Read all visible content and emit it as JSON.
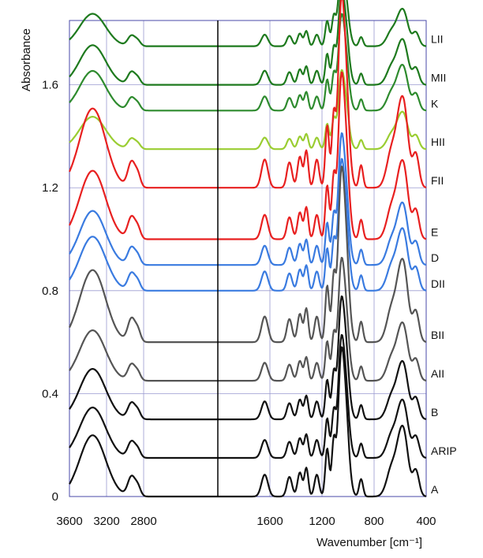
{
  "chart_data": {
    "type": "line",
    "title": "",
    "ylabel": "Absorbance",
    "xlabel": "Wavenumber [cm⁻¹]",
    "ylim": [
      0,
      1.85
    ],
    "y_ticks": [
      {
        "value": 0,
        "label": "0"
      },
      {
        "value": 0.4,
        "label": "0.4"
      },
      {
        "value": 0.8,
        "label": "0.8"
      },
      {
        "value": 1.2,
        "label": "1.2"
      },
      {
        "value": 1.6,
        "label": "1.6"
      }
    ],
    "x_axis_break_at": 2000,
    "x_segments": [
      {
        "range": [
          3600,
          2000
        ],
        "ticks": [
          {
            "value": 3600,
            "label": "3600"
          },
          {
            "value": 3200,
            "label": "3200"
          },
          {
            "value": 2800,
            "label": "2800"
          }
        ]
      },
      {
        "range": [
          2000,
          400
        ],
        "ticks": [
          {
            "value": 1600,
            "label": "1600"
          },
          {
            "value": 1200,
            "label": "1200"
          },
          {
            "value": 800,
            "label": "800"
          },
          {
            "value": 400,
            "label": "400"
          }
        ]
      }
    ],
    "series": [
      {
        "name": "LII",
        "baseline": 1.75,
        "scale": 0.45,
        "color": "#1e7a1e"
      },
      {
        "name": "MII",
        "baseline": 1.6,
        "scale": 0.55,
        "color": "#1e7a1e"
      },
      {
        "name": "K",
        "baseline": 1.5,
        "scale": 0.55,
        "color": "#2e8b2e"
      },
      {
        "name": "HII",
        "baseline": 1.35,
        "scale": 0.45,
        "color": "#9acd32"
      },
      {
        "name": "FII",
        "baseline": 1.2,
        "scale": 1.1,
        "color": "#e82020"
      },
      {
        "name": "E",
        "baseline": 1.0,
        "scale": 0.95,
        "color": "#e82020"
      },
      {
        "name": "D",
        "baseline": 0.9,
        "scale": 0.75,
        "color": "#3a7be0"
      },
      {
        "name": "DII",
        "baseline": 0.8,
        "scale": 0.75,
        "color": "#3a7be0"
      },
      {
        "name": "BII",
        "baseline": 0.6,
        "scale": 1.0,
        "color": "#555555"
      },
      {
        "name": "AII",
        "baseline": 0.45,
        "scale": 0.7,
        "color": "#555555"
      },
      {
        "name": "B",
        "baseline": 0.3,
        "scale": 0.7,
        "color": "#111111"
      },
      {
        "name": "ARIP",
        "baseline": 0.15,
        "scale": 0.7,
        "color": "#111111"
      },
      {
        "name": "A",
        "baseline": 0.0,
        "scale": 0.85,
        "color": "#111111"
      }
    ],
    "peak_profile_note": "each series = baseline + scale * shared band profile",
    "band_profile": [
      {
        "center": 3350,
        "width": 140,
        "height": 0.28
      },
      {
        "center": 2930,
        "width": 40,
        "height": 0.09
      },
      {
        "center": 2860,
        "width": 30,
        "height": 0.04
      },
      {
        "center": 1640,
        "width": 25,
        "height": 0.1
      },
      {
        "center": 1450,
        "width": 20,
        "height": 0.09
      },
      {
        "center": 1370,
        "width": 18,
        "height": 0.11
      },
      {
        "center": 1320,
        "width": 15,
        "height": 0.13
      },
      {
        "center": 1240,
        "width": 18,
        "height": 0.1
      },
      {
        "center": 1160,
        "width": 15,
        "height": 0.22
      },
      {
        "center": 1110,
        "width": 15,
        "height": 0.25
      },
      {
        "center": 1060,
        "width": 20,
        "height": 0.32
      },
      {
        "center": 1030,
        "width": 30,
        "height": 0.5
      },
      {
        "center": 900,
        "width": 15,
        "height": 0.08
      },
      {
        "center": 660,
        "width": 40,
        "height": 0.14
      },
      {
        "center": 600,
        "width": 30,
        "height": 0.18
      },
      {
        "center": 560,
        "width": 30,
        "height": 0.2
      },
      {
        "center": 480,
        "width": 25,
        "height": 0.12
      }
    ]
  }
}
